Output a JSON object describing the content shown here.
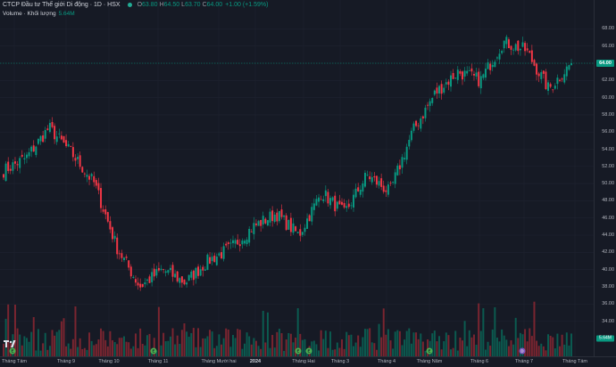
{
  "header": {
    "title": "CTCP Đầu tư Thế giới Di động · 1D · HSX",
    "open_label": "O",
    "open_value": "63.80",
    "high_label": "H",
    "high_value": "64.50",
    "low_label": "L",
    "low_value": "63.70",
    "close_label": "C",
    "close_value": "64.00",
    "change": "+1.00 (+1.59%)"
  },
  "volume": {
    "label": "Volume · Khối lượng",
    "value": "5.64M"
  },
  "price_axis": {
    "ticks": [
      "68.00",
      "66.00",
      "62.00",
      "60.00",
      "58.00",
      "56.00",
      "54.00",
      "52.00",
      "50.00",
      "48.00",
      "46.00",
      "44.00",
      "42.00",
      "40.00",
      "38.00",
      "36.00",
      "34.00"
    ],
    "current_price": "64.00",
    "current_volume": "5.64M"
  },
  "time_axis": {
    "ticks": [
      "Tháng Tám",
      "Tháng 9",
      "Tháng 10",
      "Tháng 11",
      "Tháng Mười hai",
      "2024",
      "Tháng Hai",
      "Tháng 3",
      "Tháng 4",
      "Tháng Năm",
      "Tháng 6",
      "Tháng 7",
      "Tháng Tám"
    ]
  },
  "markers": [
    "E",
    "E",
    "E",
    "E",
    "E",
    "D"
  ],
  "colors": {
    "up": "#089981",
    "down": "#f23645",
    "background": "#161a25"
  },
  "chart_data": {
    "type": "candlestick",
    "instrument": "CTCP Đầu tư Thế giới Di động",
    "interval": "1D",
    "exchange": "HSX",
    "ylim": [
      33,
      69
    ],
    "last": {
      "open": 63.8,
      "high": 64.5,
      "low": 63.7,
      "close": 64.0,
      "change": 1.0,
      "change_pct": 1.59,
      "volume": "5.64M"
    },
    "price_path": [
      {
        "x": "Tháng Tám",
        "close": 51.5
      },
      {
        "x": "Tháng 9",
        "close": 53.0
      },
      {
        "x": "mid Tháng 9",
        "close": 56.5
      },
      {
        "x": "Tháng 10",
        "close": 53.5
      },
      {
        "x": "mid Tháng 10",
        "close": 50.0
      },
      {
        "x": "late Tháng 10",
        "close": 42.5
      },
      {
        "x": "Tháng 11",
        "close": 38.0
      },
      {
        "x": "mid Tháng 11",
        "close": 40.0
      },
      {
        "x": "Tháng Mười hai",
        "close": 38.5
      },
      {
        "x": "mid Tháng Mười hai",
        "close": 41.0
      },
      {
        "x": "2024",
        "close": 42.5
      },
      {
        "x": "mid Tháng 1",
        "close": 45.0
      },
      {
        "x": "Tháng Hai",
        "close": 46.5
      },
      {
        "x": "mid Tháng Hai",
        "close": 44.0
      },
      {
        "x": "Tháng 3",
        "close": 49.0
      },
      {
        "x": "mid Tháng 3",
        "close": 46.5
      },
      {
        "x": "Tháng 4",
        "close": 51.0
      },
      {
        "x": "mid Tháng 4",
        "close": 49.0
      },
      {
        "x": "Tháng Năm",
        "close": 56.0
      },
      {
        "x": "mid Tháng Năm",
        "close": 60.5
      },
      {
        "x": "Tháng 6",
        "close": 63.0
      },
      {
        "x": "mid Tháng 6",
        "close": 62.0
      },
      {
        "x": "Tháng 7",
        "close": 66.5
      },
      {
        "x": "mid Tháng 7",
        "close": 65.5
      },
      {
        "x": "late Tháng 7",
        "close": 61.0
      },
      {
        "x": "Tháng Tám",
        "close": 64.0
      }
    ]
  }
}
